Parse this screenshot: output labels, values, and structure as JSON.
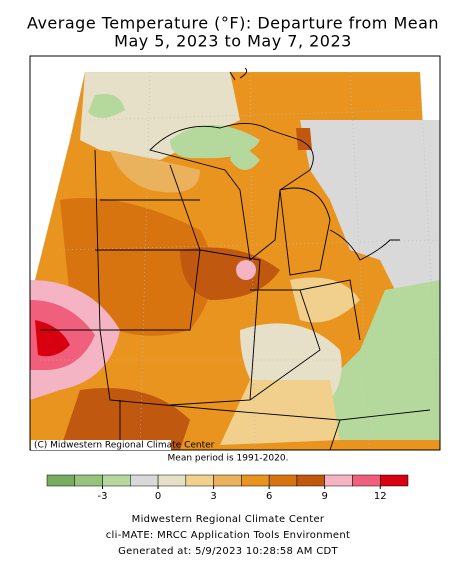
{
  "header": {
    "title": [
      "Average Temperature (°F): Departure from Mean",
      "May 5, 2023 to May 7, 2023"
    ]
  },
  "map": {
    "credit": "(C) Midwestern Regional Climate Center"
  },
  "note": "Mean period is 1991-2020.",
  "colorbar": {
    "bins": [
      -6,
      -4.5,
      -3,
      -1.5,
      0,
      1.5,
      3,
      4.5,
      6,
      7.5,
      9,
      10.5,
      12,
      13.5
    ],
    "colors": [
      "#78ac60",
      "#97c47c",
      "#b5d99d",
      "#d9d9d9",
      "#e6e0c8",
      "#f0d08c",
      "#eab25c",
      "#e8941e",
      "#d87410",
      "#c05810",
      "#f4b4c4",
      "#f0607c",
      "#d80010"
    ],
    "ticks": [
      -3,
      0,
      3,
      6,
      9,
      12
    ]
  },
  "footer": [
    "Midwestern Regional Climate Center",
    "cli-MATE: MRCC Application Tools Environment",
    "Generated at: 5/9/2023 10:28:58 AM CDT"
  ]
}
